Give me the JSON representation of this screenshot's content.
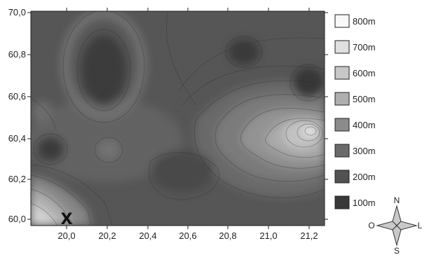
{
  "map": {
    "x_ticks": [
      "20,0",
      "20,2",
      "20,4",
      "20,6",
      "20,8",
      "21,0",
      "21,2"
    ],
    "y_ticks": [
      "70,0",
      "60,8",
      "60,6",
      "60,4",
      "60,2",
      "60,0"
    ],
    "marker_label": "X"
  },
  "legend": {
    "items": [
      {
        "label": "800m",
        "color": "#ffffff"
      },
      {
        "label": "700m",
        "color": "#e6e6e6"
      },
      {
        "label": "600m",
        "color": "#cdcdcd"
      },
      {
        "label": "500m",
        "color": "#b3b3b3"
      },
      {
        "label": "400m",
        "color": "#8f8f8f"
      },
      {
        "label": "300m",
        "color": "#6d6d6d"
      },
      {
        "label": "200m",
        "color": "#545454"
      },
      {
        "label": "100m",
        "color": "#3a3a3a"
      }
    ]
  },
  "compass": {
    "north": "N",
    "south": "S",
    "east": "L",
    "west": "O"
  }
}
